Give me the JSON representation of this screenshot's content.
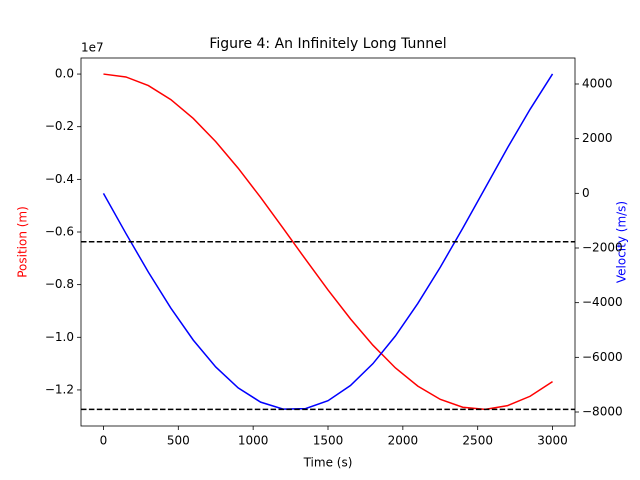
{
  "chart_data": {
    "type": "line",
    "title": "Figure 4: An Infinitely Long Tunnel",
    "xlabel": "Time (s)",
    "ylabel": "Position (m)",
    "y2label": "Velocity (m/s)",
    "y_offset_label": "1e7",
    "x": [
      0,
      150,
      300,
      450,
      600,
      750,
      900,
      1050,
      1200,
      1350,
      1500,
      1650,
      1800,
      1950,
      2100,
      2250,
      2400,
      2550,
      2700,
      2850,
      3000
    ],
    "series": [
      {
        "name": "Position (m)",
        "color": "#ff0000",
        "axis": "y",
        "values": [
          0,
          -0.011,
          -0.0437,
          -0.0969,
          -0.1687,
          -0.2567,
          -0.3577,
          -0.4688,
          -0.5856,
          -0.704,
          -0.8201,
          -0.9301,
          -1.0301,
          -1.1161,
          -1.1855,
          -1.2357,
          -1.2657,
          -1.2739,
          -1.2596,
          -1.224,
          -1.1684
        ]
      },
      {
        "name": "Velocity (m/s)",
        "color": "#0000ff",
        "axis": "y2",
        "values": [
          0,
          -1467,
          -2883,
          -4198,
          -5370,
          -6353,
          -7118,
          -7639,
          -7894,
          -7876,
          -7586,
          -7031,
          -6232,
          -5219,
          -4028,
          -2704,
          -1276,
          196,
          1674,
          3074,
          4368
        ]
      }
    ],
    "hlines": [
      -0.637,
      -1.274
    ],
    "hline_color": "#000000",
    "xlim": [
      -150,
      3150
    ],
    "xticks": [
      0,
      500,
      1000,
      1500,
      2000,
      2500,
      3000
    ],
    "ylim": [
      -1.337,
      0.061
    ],
    "yticks": [
      {
        "value": 0,
        "label": "0.0"
      },
      {
        "value": -0.2,
        "label": "−0.2"
      },
      {
        "value": -0.4,
        "label": "−0.4"
      },
      {
        "value": -0.6,
        "label": "−0.6"
      },
      {
        "value": -0.8,
        "label": "−0.8"
      },
      {
        "value": -1.0,
        "label": "−1.0"
      },
      {
        "value": -1.2,
        "label": "−1.2"
      }
    ],
    "y2lim": [
      -8512,
      4951
    ],
    "y2ticks": [
      {
        "value": -8000,
        "label": "−8000"
      },
      {
        "value": -6000,
        "label": "−6000"
      },
      {
        "value": -4000,
        "label": "−4000"
      },
      {
        "value": -2000,
        "label": "−2000"
      },
      0,
      2000,
      4000
    ],
    "grid": false
  }
}
